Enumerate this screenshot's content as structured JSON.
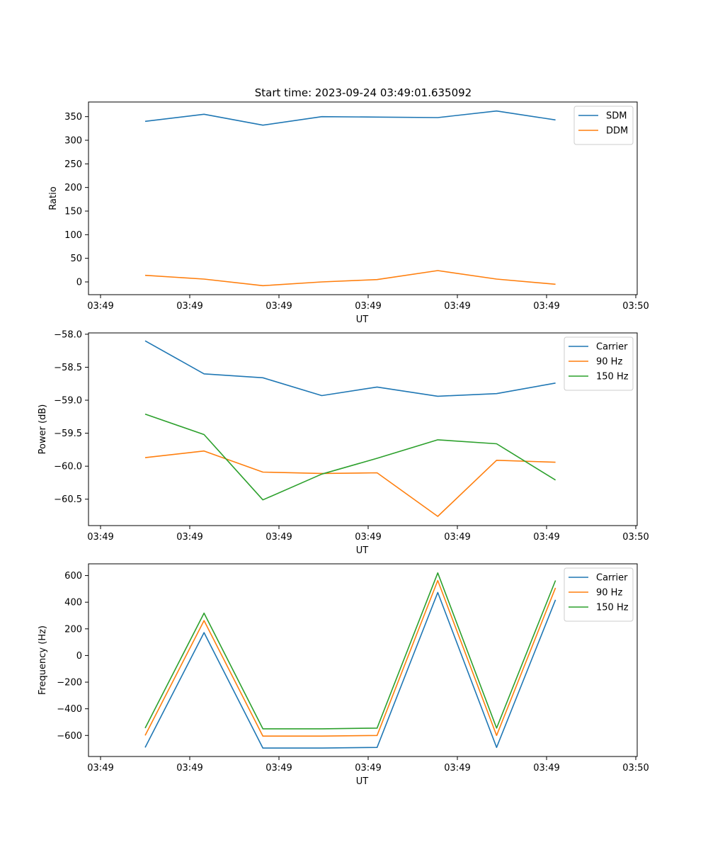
{
  "figure_title": "Start time: 2023-09-24 03:49:01.635092",
  "colors": {
    "blue": "#1f77b4",
    "orange": "#ff7f0e",
    "green": "#2ca02c"
  },
  "chart_data": [
    {
      "type": "line",
      "title": "Start time: 2023-09-24 03:49:01.635092",
      "xlabel": "UT",
      "ylabel": "Ratio",
      "x": [
        0.5,
        1.16,
        1.82,
        2.48,
        3.1,
        3.78,
        4.44,
        5.1
      ],
      "xlim": [
        0,
        6.0
      ],
      "xticks": [
        0,
        1,
        2,
        3,
        4,
        5,
        6
      ],
      "xtick_labels": [
        "03:49",
        "03:49",
        "03:49",
        "03:49",
        "03:49",
        "03:49",
        "03:50"
      ],
      "ylim": [
        -27,
        381
      ],
      "yticks": [
        0,
        50,
        100,
        150,
        200,
        250,
        300,
        350
      ],
      "ytick_labels": [
        "0",
        "50",
        "100",
        "150",
        "200",
        "250",
        "300",
        "350"
      ],
      "legend_position": "top-right",
      "series": [
        {
          "name": "SDM",
          "color": "#1f77b4",
          "values": [
            340,
            355,
            332,
            350,
            349,
            348,
            362,
            343
          ]
        },
        {
          "name": "DDM",
          "color": "#ff7f0e",
          "values": [
            14,
            6,
            -8,
            0,
            5,
            24,
            6,
            -5
          ]
        }
      ]
    },
    {
      "type": "line",
      "xlabel": "UT",
      "ylabel": "Power (dB)",
      "x": [
        0.5,
        1.16,
        1.82,
        2.48,
        3.1,
        3.78,
        4.44,
        5.1
      ],
      "xlim": [
        0,
        6.0
      ],
      "xticks": [
        0,
        1,
        2,
        3,
        4,
        5,
        6
      ],
      "xtick_labels": [
        "03:49",
        "03:49",
        "03:49",
        "03:49",
        "03:49",
        "03:49",
        "03:50"
      ],
      "ylim": [
        -60.9,
        -57.98
      ],
      "yticks": [
        -60.5,
        -60.0,
        -59.5,
        -59.0,
        -58.5,
        -58.0
      ],
      "ytick_labels": [
        "−60.5",
        "−60.0",
        "−59.5",
        "−59.0",
        "−58.5",
        "−58.0"
      ],
      "legend_position": "top-right",
      "series": [
        {
          "name": "Carrier",
          "color": "#1f77b4",
          "values": [
            -58.1,
            -58.6,
            -58.66,
            -58.93,
            -58.8,
            -58.94,
            -58.9,
            -58.74
          ]
        },
        {
          "name": "90 Hz",
          "color": "#ff7f0e",
          "values": [
            -59.87,
            -59.77,
            -60.09,
            -60.11,
            -60.1,
            -60.76,
            -59.91,
            -59.94
          ]
        },
        {
          "name": "150 Hz",
          "color": "#2ca02c",
          "values": [
            -59.21,
            -59.52,
            -60.51,
            -60.12,
            -59.88,
            -59.6,
            -59.66,
            -60.21
          ]
        }
      ]
    },
    {
      "type": "line",
      "xlabel": "UT",
      "ylabel": "Frequency (Hz)",
      "x": [
        0.5,
        1.16,
        1.82,
        2.48,
        3.1,
        3.78,
        4.44,
        5.1
      ],
      "xlim": [
        0,
        6.0
      ],
      "xticks": [
        0,
        1,
        2,
        3,
        4,
        5,
        6
      ],
      "xtick_labels": [
        "03:49",
        "03:49",
        "03:49",
        "03:49",
        "03:49",
        "03:49",
        "03:50"
      ],
      "ylim": [
        -758,
        688
      ],
      "yticks": [
        -600,
        -400,
        -200,
        0,
        200,
        400,
        600
      ],
      "ytick_labels": [
        "−600",
        "−400",
        "−200",
        "0",
        "200",
        "400",
        "600"
      ],
      "legend_position": "top-right",
      "series": [
        {
          "name": "Carrier",
          "color": "#1f77b4",
          "values": [
            -690,
            172,
            -695,
            -695,
            -690,
            473,
            -690,
            418
          ]
        },
        {
          "name": "90 Hz",
          "color": "#ff7f0e",
          "values": [
            -600,
            262,
            -605,
            -605,
            -600,
            563,
            -600,
            508
          ]
        },
        {
          "name": "150 Hz",
          "color": "#2ca02c",
          "values": [
            -545,
            318,
            -550,
            -550,
            -545,
            620,
            -545,
            563
          ]
        }
      ]
    }
  ]
}
